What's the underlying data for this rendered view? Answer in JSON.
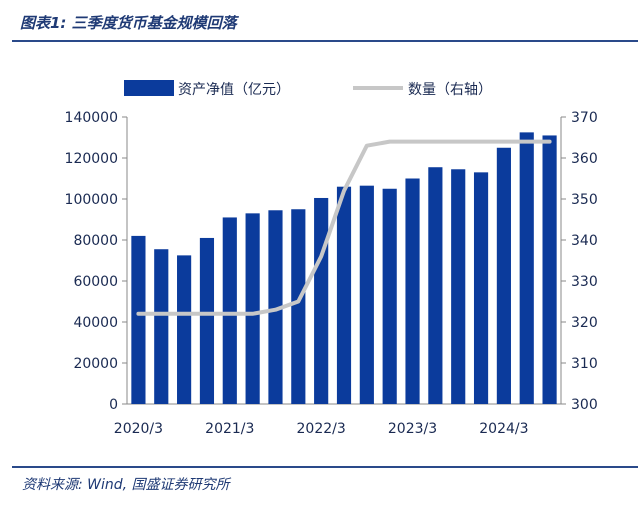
{
  "header": {
    "title": "图表1: 三季度货币基金规模回落"
  },
  "footer": {
    "source": "资料来源: Wind, 国盛证券研究所"
  },
  "chart_data": {
    "type": "bar",
    "title": "",
    "legend": {
      "position": "top",
      "items": [
        "资产净值（亿元）",
        "数量（右轴）"
      ]
    },
    "categories": [
      "2020/3",
      "2020/6",
      "2020/9",
      "2020/12",
      "2021/3",
      "2021/6",
      "2021/9",
      "2021/12",
      "2022/3",
      "2022/6",
      "2022/9",
      "2022/12",
      "2023/3",
      "2023/6",
      "2023/9",
      "2023/12",
      "2024/3",
      "2024/6",
      "2024/9"
    ],
    "x_tick_labels": [
      "2020/3",
      "2021/3",
      "2022/3",
      "2023/3",
      "2024/3"
    ],
    "series": [
      {
        "name": "资产净值（亿元）",
        "type": "bar",
        "axis": "left",
        "color": "#0b3b9c",
        "values": [
          82000,
          75500,
          72500,
          81000,
          91000,
          93000,
          94500,
          95000,
          100500,
          106000,
          106500,
          105000,
          110000,
          115500,
          114500,
          113000,
          125000,
          132500,
          131000
        ]
      },
      {
        "name": "数量（右轴）",
        "type": "line",
        "axis": "right",
        "color": "#c7c7c7",
        "values": [
          322,
          322,
          322,
          322,
          322,
          322,
          323,
          325,
          336,
          352,
          363,
          364,
          364,
          364,
          364,
          364,
          364,
          364,
          364
        ]
      }
    ],
    "y_left": {
      "min": 0,
      "max": 140000,
      "ticks": [
        0,
        20000,
        40000,
        60000,
        80000,
        100000,
        120000,
        140000
      ]
    },
    "y_right": {
      "min": 300,
      "max": 370,
      "ticks": [
        300,
        310,
        320,
        330,
        340,
        350,
        360,
        370
      ]
    },
    "grid": false
  }
}
